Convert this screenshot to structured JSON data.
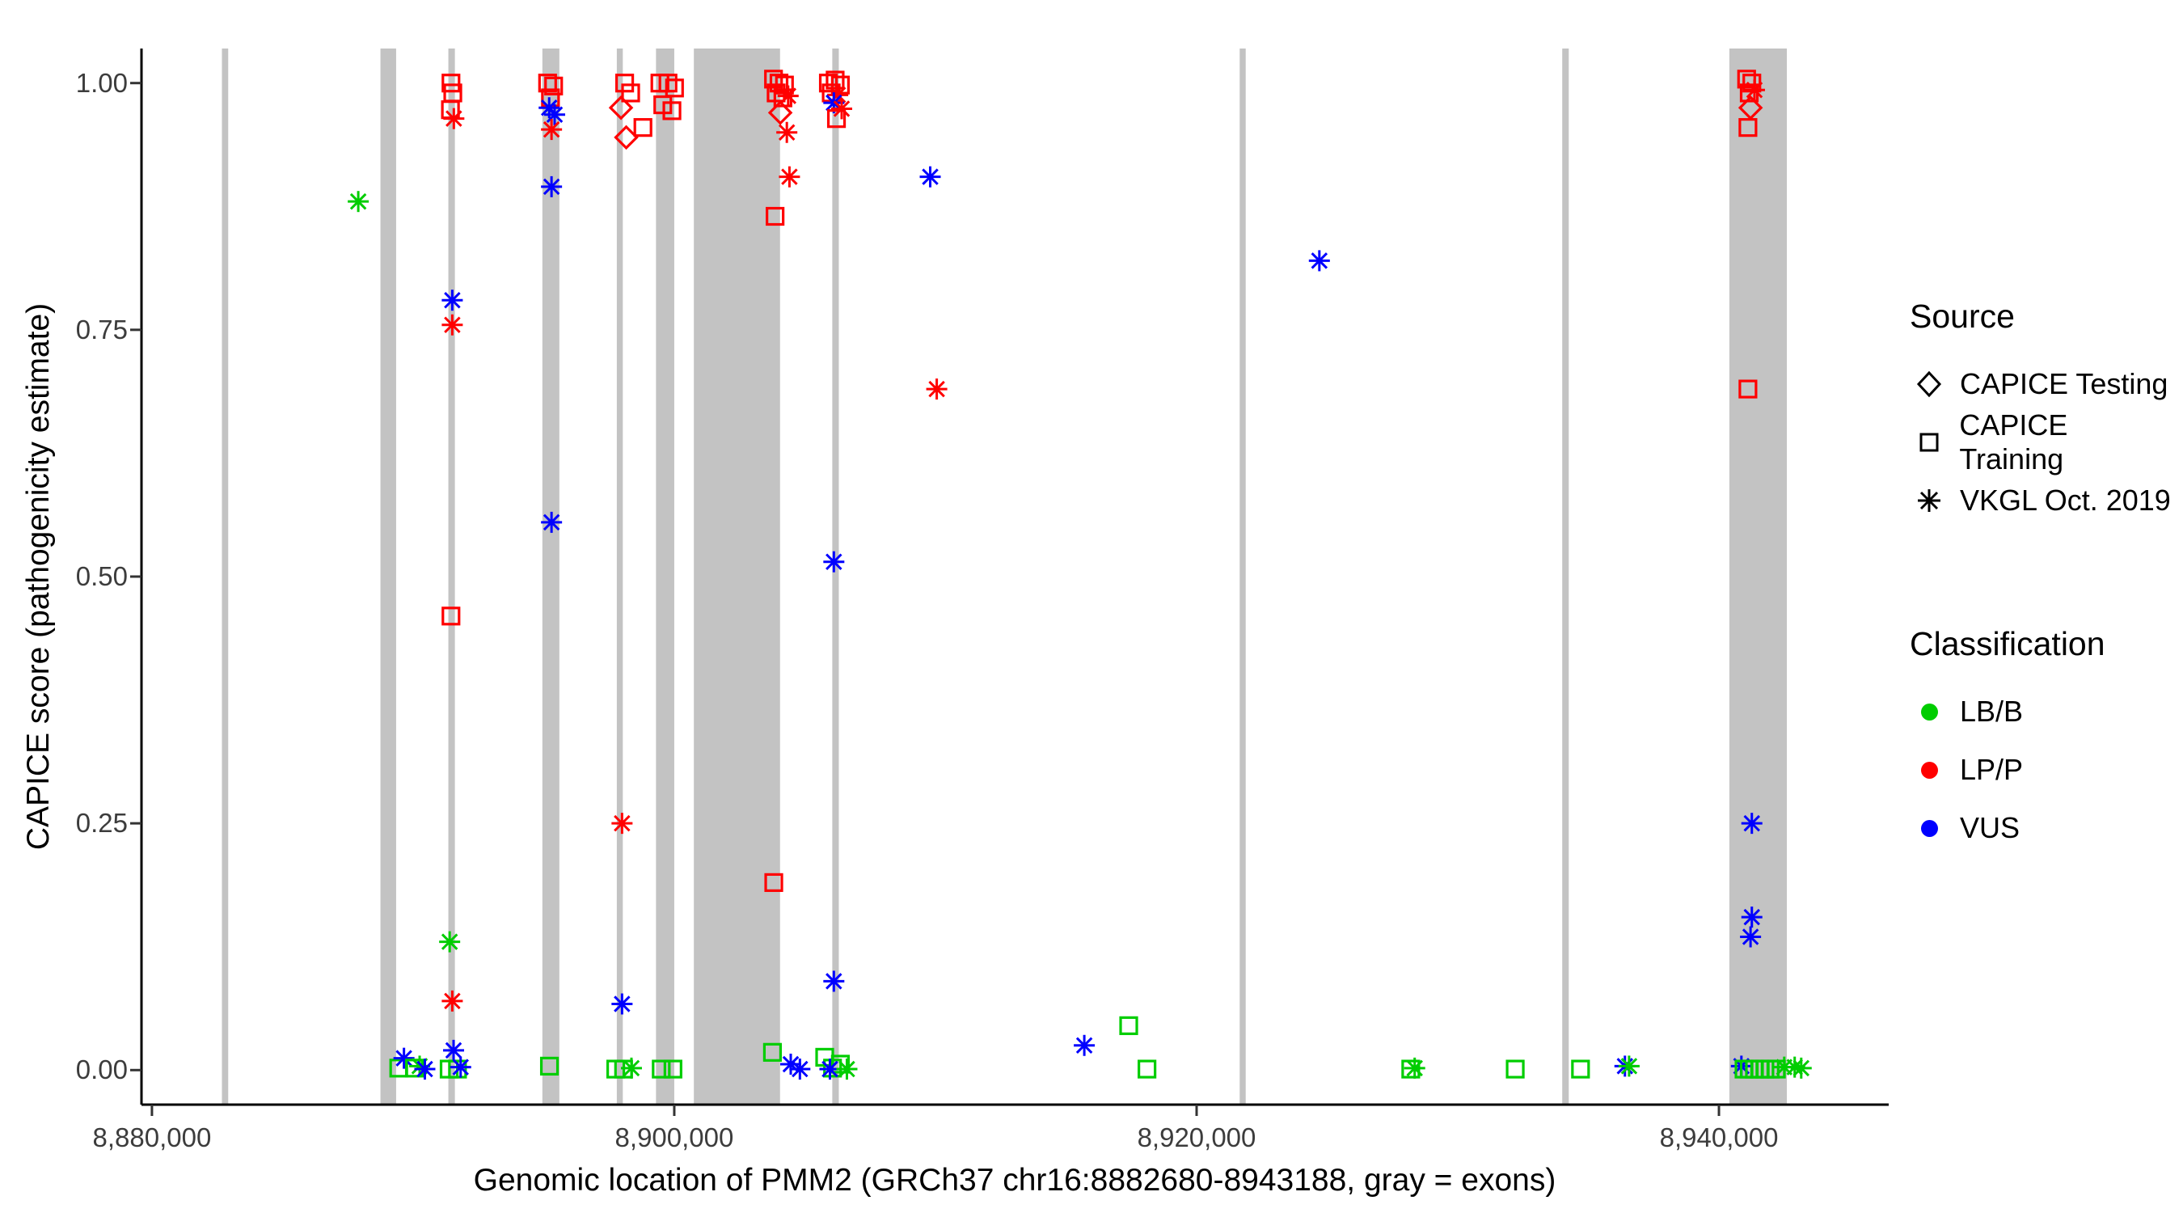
{
  "chart_data": {
    "type": "scatter",
    "title": "",
    "xlabel": "Genomic location of PMM2 (GRCh37 chr16:8882680-8943188, gray = exons)",
    "ylabel": "CAPICE score (pathogenicity estimate)",
    "x_domain": [
      8879600,
      8946500
    ],
    "y_domain": [
      -0.035,
      1.035
    ],
    "x_ticks": [
      {
        "value": 8880000,
        "label": "8,880,000"
      },
      {
        "value": 8900000,
        "label": "8,900,000"
      },
      {
        "value": 8920000,
        "label": "8,920,000"
      },
      {
        "value": 8940000,
        "label": "8,940,000"
      }
    ],
    "y_ticks": [
      {
        "value": 0.0,
        "label": "0.00"
      },
      {
        "value": 0.25,
        "label": "0.25"
      },
      {
        "value": 0.5,
        "label": "0.50"
      },
      {
        "value": 0.75,
        "label": "0.75"
      },
      {
        "value": 1.0,
        "label": "1.00"
      }
    ],
    "exon_color": "#c3c3c3",
    "exon_regions": [
      [
        8882680,
        8882920
      ],
      [
        8888750,
        8889350
      ],
      [
        8891350,
        8891600
      ],
      [
        8894950,
        8895600
      ],
      [
        8897800,
        8898030
      ],
      [
        8899300,
        8900000
      ],
      [
        8900750,
        8904050
      ],
      [
        8906050,
        8906300
      ],
      [
        8921650,
        8921880
      ],
      [
        8934000,
        8934250
      ],
      [
        8940400,
        8942600
      ]
    ],
    "classification_colors": {
      "LB/B": "#00cd00",
      "LP/P": "#ff0000",
      "VUS": "#0000ff"
    },
    "source_shapes": {
      "testing": "diamond",
      "training": "square",
      "vkgl": "asterisk"
    },
    "point_fields": [
      "x",
      "y",
      "source",
      "classification"
    ],
    "points": [
      [
        8887900,
        0.88,
        "vkgl",
        "LB/B"
      ],
      [
        8889450,
        0.002,
        "training",
        "LB/B"
      ],
      [
        8889650,
        0.012,
        "vkgl",
        "VUS"
      ],
      [
        8890050,
        0.002,
        "training",
        "LB/B"
      ],
      [
        8890250,
        0.004,
        "vkgl",
        "LB/B"
      ],
      [
        8890450,
        0.001,
        "vkgl",
        "VUS"
      ],
      [
        8891450,
        1.0,
        "training",
        "LP/P"
      ],
      [
        8891520,
        0.99,
        "training",
        "LP/P"
      ],
      [
        8891430,
        0.973,
        "training",
        "LP/P"
      ],
      [
        8891560,
        0.964,
        "vkgl",
        "LP/P"
      ],
      [
        8891500,
        0.78,
        "vkgl",
        "VUS"
      ],
      [
        8891500,
        0.755,
        "vkgl",
        "LP/P"
      ],
      [
        8891450,
        0.46,
        "training",
        "LP/P"
      ],
      [
        8891400,
        0.13,
        "vkgl",
        "LB/B"
      ],
      [
        8891500,
        0.07,
        "vkgl",
        "LP/P"
      ],
      [
        8891550,
        0.02,
        "vkgl",
        "VUS"
      ],
      [
        8891380,
        0.001,
        "training",
        "LB/B"
      ],
      [
        8891700,
        0.001,
        "training",
        "LB/B"
      ],
      [
        8891820,
        0.003,
        "vkgl",
        "VUS"
      ],
      [
        8895150,
        1.0,
        "training",
        "LP/P"
      ],
      [
        8895380,
        0.997,
        "training",
        "LP/P"
      ],
      [
        8895260,
        0.985,
        "training",
        "LP/P"
      ],
      [
        8895210,
        0.975,
        "vkgl",
        "VUS"
      ],
      [
        8895420,
        0.968,
        "vkgl",
        "VUS"
      ],
      [
        8895300,
        0.953,
        "vkgl",
        "LP/P"
      ],
      [
        8895300,
        0.895,
        "vkgl",
        "VUS"
      ],
      [
        8895300,
        0.555,
        "vkgl",
        "VUS"
      ],
      [
        8895220,
        0.004,
        "training",
        "LB/B"
      ],
      [
        8898100,
        1.0,
        "training",
        "LP/P"
      ],
      [
        8898330,
        0.99,
        "training",
        "LP/P"
      ],
      [
        8897960,
        0.975,
        "testing",
        "LP/P"
      ],
      [
        8898160,
        0.945,
        "testing",
        "LP/P"
      ],
      [
        8898800,
        0.955,
        "training",
        "LP/P"
      ],
      [
        8898000,
        0.25,
        "vkgl",
        "LP/P"
      ],
      [
        8898000,
        0.067,
        "vkgl",
        "VUS"
      ],
      [
        8897760,
        0.001,
        "training",
        "LB/B"
      ],
      [
        8898060,
        0.001,
        "training",
        "LB/B"
      ],
      [
        8898360,
        0.002,
        "vkgl",
        "LB/B"
      ],
      [
        8899450,
        1.0,
        "training",
        "LP/P"
      ],
      [
        8899760,
        1.0,
        "training",
        "LP/P"
      ],
      [
        8900010,
        0.995,
        "training",
        "LP/P"
      ],
      [
        8899560,
        0.978,
        "training",
        "LP/P"
      ],
      [
        8899910,
        0.972,
        "training",
        "LP/P"
      ],
      [
        8899500,
        0.001,
        "training",
        "LB/B"
      ],
      [
        8899950,
        0.001,
        "training",
        "LB/B"
      ],
      [
        8903800,
        1.004,
        "training",
        "LP/P"
      ],
      [
        8904010,
        1.0,
        "training",
        "LP/P"
      ],
      [
        8904220,
        0.998,
        "training",
        "LP/P"
      ],
      [
        8903900,
        0.99,
        "training",
        "LP/P"
      ],
      [
        8904160,
        0.985,
        "training",
        "LP/P"
      ],
      [
        8904360,
        0.987,
        "vkgl",
        "LP/P"
      ],
      [
        8904060,
        0.97,
        "testing",
        "LP/P"
      ],
      [
        8904310,
        0.95,
        "vkgl",
        "LP/P"
      ],
      [
        8904410,
        0.905,
        "vkgl",
        "LP/P"
      ],
      [
        8903860,
        0.865,
        "training",
        "LP/P"
      ],
      [
        8903810,
        0.19,
        "training",
        "LP/P"
      ],
      [
        8903760,
        0.018,
        "training",
        "LB/B"
      ],
      [
        8904460,
        0.006,
        "vkgl",
        "VUS"
      ],
      [
        8904810,
        0.001,
        "vkgl",
        "VUS"
      ],
      [
        8905900,
        1.0,
        "training",
        "LP/P"
      ],
      [
        8906160,
        1.003,
        "training",
        "LP/P"
      ],
      [
        8906360,
        0.998,
        "training",
        "LP/P"
      ],
      [
        8906010,
        0.99,
        "training",
        "LP/P"
      ],
      [
        8906260,
        0.988,
        "vkgl",
        "LP/P"
      ],
      [
        8906110,
        0.98,
        "vkgl",
        "VUS"
      ],
      [
        8906410,
        0.974,
        "vkgl",
        "LP/P"
      ],
      [
        8906210,
        0.964,
        "training",
        "LP/P"
      ],
      [
        8906110,
        0.515,
        "vkgl",
        "VUS"
      ],
      [
        8906110,
        0.09,
        "vkgl",
        "VUS"
      ],
      [
        8905760,
        0.013,
        "training",
        "LB/B"
      ],
      [
        8906060,
        0.002,
        "training",
        "LB/B"
      ],
      [
        8906360,
        0.006,
        "training",
        "LB/B"
      ],
      [
        8905960,
        0.001,
        "vkgl",
        "VUS"
      ],
      [
        8906610,
        0.001,
        "vkgl",
        "LB/B"
      ],
      [
        8909800,
        0.905,
        "vkgl",
        "VUS"
      ],
      [
        8910050,
        0.69,
        "vkgl",
        "LP/P"
      ],
      [
        8915700,
        0.025,
        "vkgl",
        "VUS"
      ],
      [
        8917400,
        0.045,
        "training",
        "LB/B"
      ],
      [
        8918100,
        0.001,
        "training",
        "LB/B"
      ],
      [
        8924700,
        0.82,
        "vkgl",
        "VUS"
      ],
      [
        8928200,
        0.001,
        "training",
        "LB/B"
      ],
      [
        8928350,
        0.002,
        "vkgl",
        "LB/B"
      ],
      [
        8932200,
        0.001,
        "training",
        "LB/B"
      ],
      [
        8934700,
        0.001,
        "training",
        "LB/B"
      ],
      [
        8936400,
        0.004,
        "vkgl",
        "VUS"
      ],
      [
        8936560,
        0.004,
        "vkgl",
        "LB/B"
      ],
      [
        8941060,
        1.004,
        "training",
        "LP/P"
      ],
      [
        8941260,
        1.0,
        "training",
        "LP/P"
      ],
      [
        8941160,
        0.99,
        "training",
        "LP/P"
      ],
      [
        8941360,
        0.993,
        "vkgl",
        "LP/P"
      ],
      [
        8941210,
        0.975,
        "testing",
        "LP/P"
      ],
      [
        8941110,
        0.955,
        "training",
        "LP/P"
      ],
      [
        8941110,
        0.69,
        "training",
        "LP/P"
      ],
      [
        8941260,
        0.25,
        "vkgl",
        "VUS"
      ],
      [
        8941260,
        0.155,
        "vkgl",
        "VUS"
      ],
      [
        8941210,
        0.135,
        "vkgl",
        "VUS"
      ],
      [
        8940860,
        0.004,
        "vkgl",
        "VUS"
      ],
      [
        8940960,
        0.001,
        "training",
        "LB/B"
      ],
      [
        8941160,
        0.001,
        "training",
        "LB/B"
      ],
      [
        8941360,
        0.001,
        "training",
        "LB/B"
      ],
      [
        8941560,
        0.001,
        "training",
        "LB/B"
      ],
      [
        8941760,
        0.001,
        "training",
        "LB/B"
      ],
      [
        8941960,
        0.001,
        "training",
        "LB/B"
      ],
      [
        8942200,
        0.001,
        "training",
        "LB/B"
      ],
      [
        8942500,
        0.003,
        "vkgl",
        "LB/B"
      ],
      [
        8942900,
        0.003,
        "vkgl",
        "LB/B"
      ],
      [
        8943150,
        0.002,
        "vkgl",
        "LB/B"
      ]
    ]
  },
  "legend": {
    "source": {
      "title": "Source",
      "items": [
        {
          "label": "CAPICE Testing",
          "shape": "diamond"
        },
        {
          "label": "CAPICE Training",
          "shape": "square"
        },
        {
          "label": "VKGL Oct. 2019",
          "shape": "asterisk"
        }
      ]
    },
    "classification": {
      "title": "Classification",
      "items": [
        {
          "label": "LB/B",
          "color": "#00cd00"
        },
        {
          "label": "LP/P",
          "color": "#ff0000"
        },
        {
          "label": "VUS",
          "color": "#0000ff"
        }
      ]
    }
  }
}
